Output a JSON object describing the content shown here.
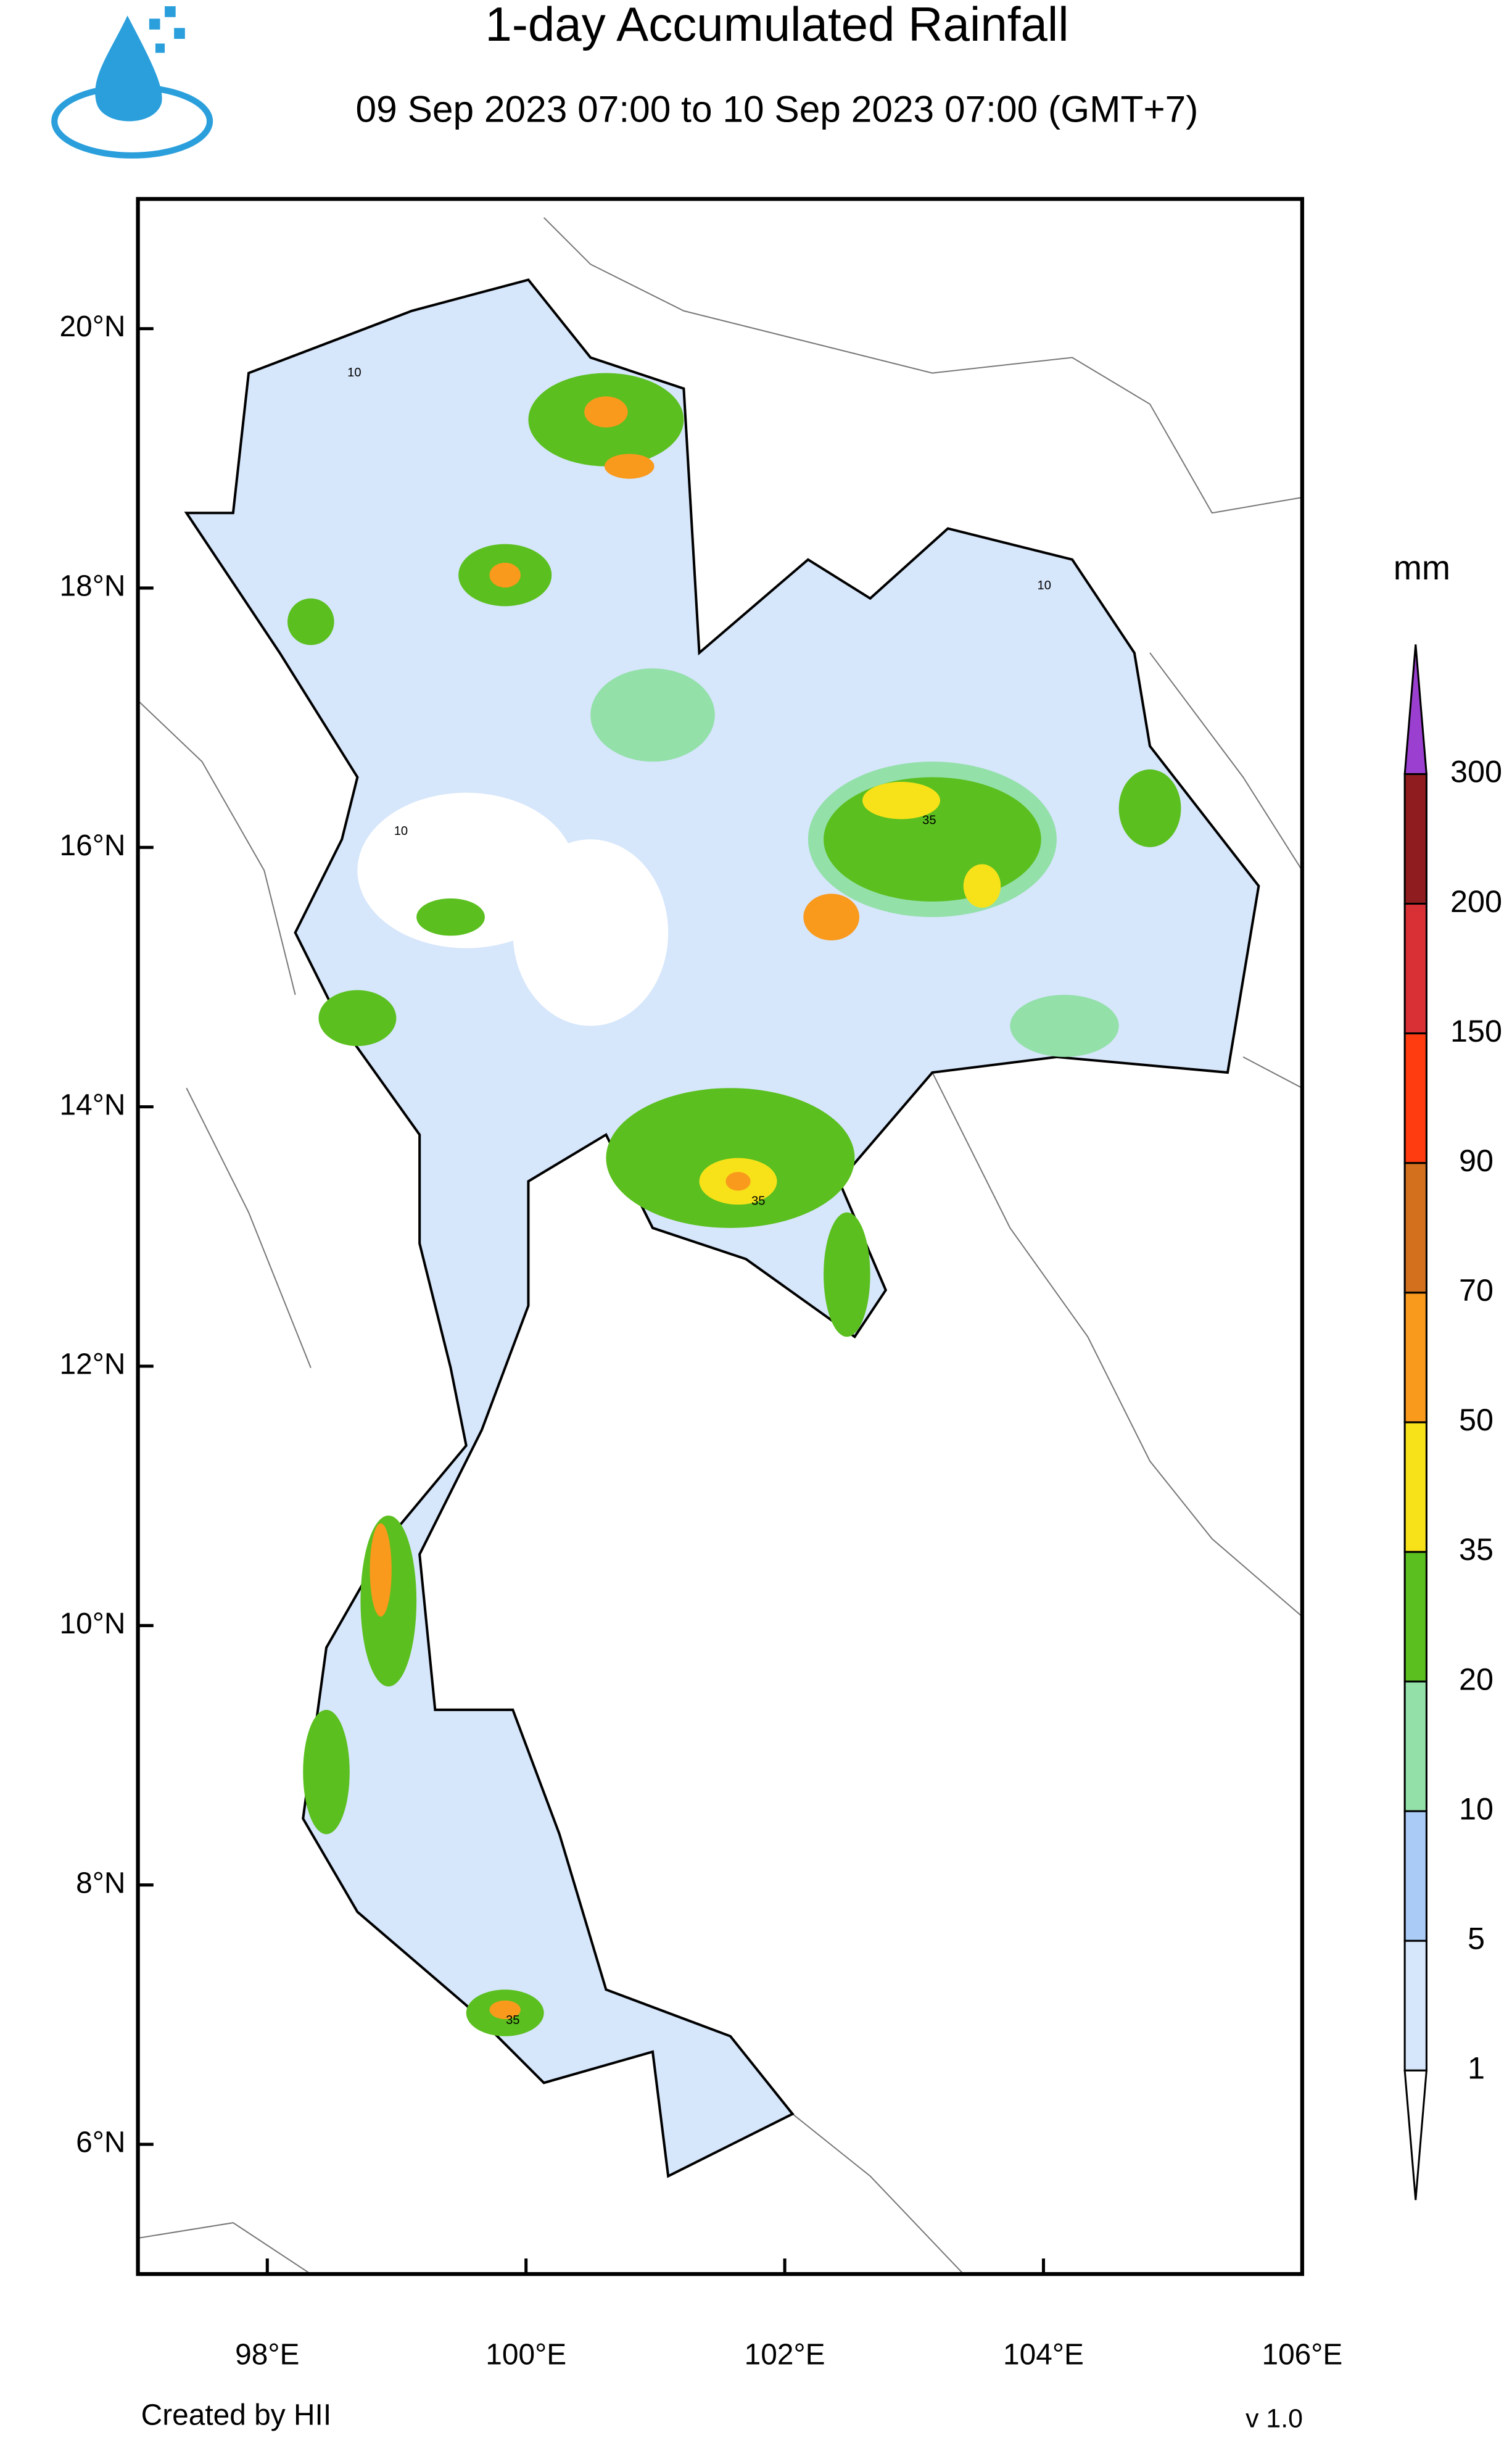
{
  "header": {
    "title": "1-day Accumulated Rainfall",
    "subtitle": "09 Sep 2023 07:00 to 10 Sep 2023 07:00 (GMT+7)"
  },
  "map": {
    "xlim": [
      97,
      106
    ],
    "ylim": [
      5,
      21
    ],
    "xticks": [
      {
        "value": 98,
        "label": "98°E"
      },
      {
        "value": 100,
        "label": "100°E"
      },
      {
        "value": 102,
        "label": "102°E"
      },
      {
        "value": 104,
        "label": "104°E"
      },
      {
        "value": 106,
        "label": "106°E"
      }
    ],
    "yticks": [
      {
        "value": 20,
        "label": "20°N"
      },
      {
        "value": 18,
        "label": "18°N"
      },
      {
        "value": 16,
        "label": "16°N"
      },
      {
        "value": 14,
        "label": "14°N"
      },
      {
        "value": 12,
        "label": "12°N"
      },
      {
        "value": 10,
        "label": "10°N"
      },
      {
        "value": 8,
        "label": "8°N"
      },
      {
        "value": 6,
        "label": "6°N"
      }
    ],
    "contour_labels": [
      10,
      10,
      35,
      35,
      10,
      35
    ]
  },
  "colorbar": {
    "unit": "mm",
    "levels": [
      1,
      5,
      10,
      20,
      35,
      50,
      70,
      90,
      150,
      200,
      300
    ],
    "colors": [
      "#ffffff",
      "#d6e6fb",
      "#a9cbf5",
      "#93e0a9",
      "#5bbf1f",
      "#f7e21a",
      "#f99a1c",
      "#d2701e",
      "#ff3b10",
      "#d93036",
      "#8f1d1f",
      "#9b3fd1"
    ]
  },
  "footer": {
    "credit": "Created by HII",
    "version": "v 1.0"
  }
}
